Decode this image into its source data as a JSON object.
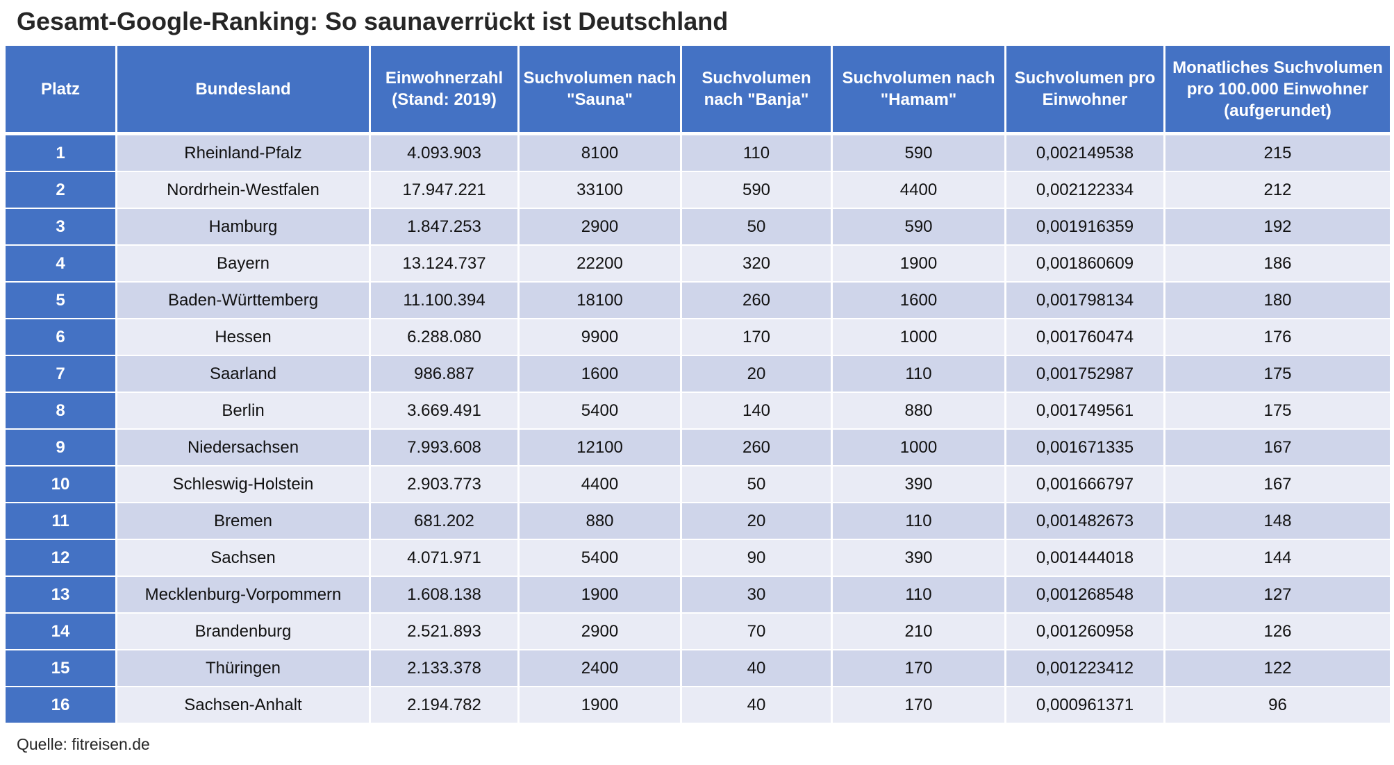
{
  "title": "Gesamt-Google-Ranking: So saunaverrückt ist Deutschland",
  "source": "Quelle: fitreisen.de",
  "colors": {
    "header_bg": "#4472c4",
    "row_odd": "#cfd5ea",
    "row_even": "#e9ebf5",
    "header_text": "#ffffff"
  },
  "chart_data": {
    "type": "table",
    "title": "Gesamt-Google-Ranking: So saunaverrückt ist Deutschland",
    "columns": [
      "Platz",
      "Bundesland",
      "Einwohnerzahl (Stand: 2019)",
      "Suchvolumen nach \"Sauna\"",
      "Suchvolumen nach \"Banja\"",
      "Suchvolumen nach \"Hamam\"",
      "Suchvolumen pro Einwohner",
      "Monatliches Suchvolumen pro 100.000 Einwohner (aufgerundet)"
    ],
    "rows": [
      [
        "1",
        "Rheinland-Pfalz",
        "4.093.903",
        "8100",
        "110",
        "590",
        "0,002149538",
        "215"
      ],
      [
        "2",
        "Nordrhein-Westfalen",
        "17.947.221",
        "33100",
        "590",
        "4400",
        "0,002122334",
        "212"
      ],
      [
        "3",
        "Hamburg",
        "1.847.253",
        "2900",
        "50",
        "590",
        "0,001916359",
        "192"
      ],
      [
        "4",
        "Bayern",
        "13.124.737",
        "22200",
        "320",
        "1900",
        "0,001860609",
        "186"
      ],
      [
        "5",
        "Baden-Württemberg",
        "11.100.394",
        "18100",
        "260",
        "1600",
        "0,001798134",
        "180"
      ],
      [
        "6",
        "Hessen",
        "6.288.080",
        "9900",
        "170",
        "1000",
        "0,001760474",
        "176"
      ],
      [
        "7",
        "Saarland",
        "986.887",
        "1600",
        "20",
        "110",
        "0,001752987",
        "175"
      ],
      [
        "8",
        "Berlin",
        "3.669.491",
        "5400",
        "140",
        "880",
        "0,001749561",
        "175"
      ],
      [
        "9",
        "Niedersachsen",
        "7.993.608",
        "12100",
        "260",
        "1000",
        "0,001671335",
        "167"
      ],
      [
        "10",
        "Schleswig-Holstein",
        "2.903.773",
        "4400",
        "50",
        "390",
        "0,001666797",
        "167"
      ],
      [
        "11",
        "Bremen",
        "681.202",
        "880",
        "20",
        "110",
        "0,001482673",
        "148"
      ],
      [
        "12",
        "Sachsen",
        "4.071.971",
        "5400",
        "90",
        "390",
        "0,001444018",
        "144"
      ],
      [
        "13",
        "Mecklenburg-Vorpommern",
        "1.608.138",
        "1900",
        "30",
        "110",
        "0,001268548",
        "127"
      ],
      [
        "14",
        "Brandenburg",
        "2.521.893",
        "2900",
        "70",
        "210",
        "0,001260958",
        "126"
      ],
      [
        "15",
        "Thüringen",
        "2.133.378",
        "2400",
        "40",
        "170",
        "0,001223412",
        "122"
      ],
      [
        "16",
        "Sachsen-Anhalt",
        "2.194.782",
        "1900",
        "40",
        "170",
        "0,000961371",
        "96"
      ]
    ]
  }
}
